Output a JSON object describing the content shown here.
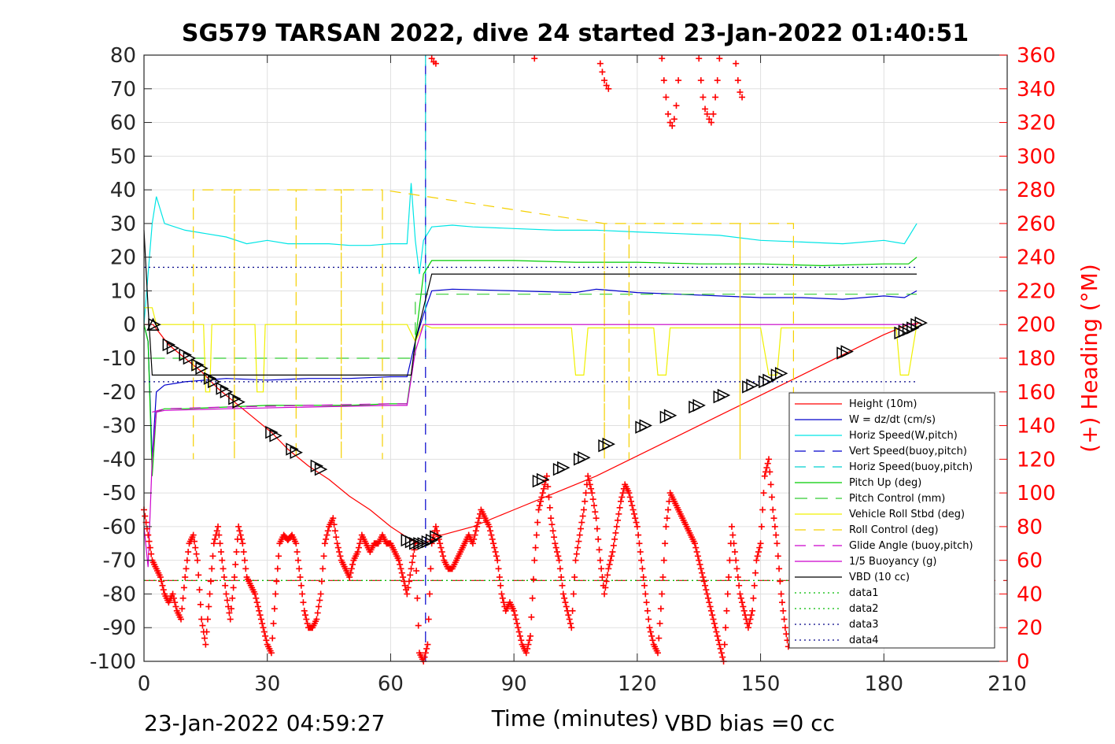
{
  "chart_data": {
    "type": "line",
    "title": "SG579 TARSAN 2022, dive 24 started 23-Jan-2022 01:40:51",
    "xlabel": "Time (minutes)",
    "ylabel_right": "(+) Heading (°M)",
    "footer_left": "23-Jan-2022 04:59:27",
    "footer_right": "VBD bias =0 cc",
    "xlim": [
      0,
      210
    ],
    "ylim": [
      -100,
      80
    ],
    "ylim_right": [
      0,
      360
    ],
    "x_ticks": [
      "0",
      "30",
      "60",
      "90",
      "120",
      "150",
      "180",
      "210"
    ],
    "y_ticks": [
      "80",
      "70",
      "60",
      "50",
      "40",
      "30",
      "20",
      "10",
      "0",
      "-10",
      "-20",
      "-30",
      "-40",
      "-50",
      "-60",
      "-70",
      "-80",
      "-90",
      "-100"
    ],
    "y_ticks_right": [
      "360",
      "340",
      "320",
      "300",
      "280",
      "260",
      "240",
      "220",
      "200",
      "180",
      "160",
      "140",
      "120",
      "100",
      "80",
      "60",
      "40",
      "20",
      "0"
    ],
    "grid": true,
    "legend_position": "lower-right",
    "colors": {
      "axis": "#262626",
      "heading": "#ff0000",
      "grid": "#e0e0e0"
    },
    "series": [
      {
        "name": "Height (10m)",
        "color": "#ff0000",
        "dash": "",
        "x": [
          0,
          2.2,
          6,
          10,
          14,
          18,
          22,
          26,
          31,
          35,
          40,
          45,
          50,
          55,
          60,
          65,
          66,
          67,
          68,
          69,
          70,
          71,
          80,
          90,
          100,
          110,
          120,
          130,
          140,
          150,
          160,
          170,
          180,
          186,
          189
        ],
        "y": [
          0,
          0,
          -6,
          -10,
          -14,
          -19,
          -23,
          -27,
          -32,
          -37,
          -42,
          -46,
          -51,
          -55,
          -60,
          -64,
          -64.5,
          -65,
          -65,
          -64.5,
          -64,
          -63,
          -60,
          -55,
          -50,
          -45,
          -39,
          -33,
          -27,
          -21,
          -15,
          -9,
          -3,
          0,
          0.5
        ]
      },
      {
        "name": "W = dz/dt (cm/s)",
        "color": "#0000cc",
        "dash": "",
        "x": [
          0,
          1,
          2,
          3,
          5,
          10,
          20,
          30,
          40,
          50,
          60,
          64,
          66,
          68,
          70,
          75,
          90,
          105,
          110,
          120,
          130,
          140,
          150,
          160,
          170,
          180,
          185,
          188
        ],
        "y": [
          0,
          -5,
          -40,
          -20,
          -18,
          -17,
          -16,
          -16.5,
          -16,
          -16,
          -15.5,
          -15.5,
          -5,
          3,
          10,
          10.5,
          10,
          9.5,
          10.5,
          9.5,
          9,
          8.5,
          8,
          8,
          7.5,
          8.5,
          8,
          10
        ]
      },
      {
        "name": "Horiz Speed(W,pitch)",
        "color": "#00e5e5",
        "dash": "",
        "x": [
          0,
          2,
          3,
          5,
          10,
          15,
          20,
          25,
          30,
          35,
          40,
          45,
          50,
          55,
          60,
          64,
          65,
          66,
          67,
          68,
          70,
          75,
          80,
          90,
          100,
          110,
          120,
          130,
          140,
          150,
          160,
          170,
          180,
          185,
          188
        ],
        "y": [
          0,
          30,
          38,
          30,
          28,
          27,
          26,
          24,
          25,
          24,
          24,
          24,
          23.5,
          23.5,
          24,
          24,
          42,
          25,
          15,
          25,
          29,
          29.5,
          29,
          28.5,
          28,
          28,
          27.5,
          27,
          26.5,
          25,
          24.5,
          24,
          25,
          24,
          30
        ]
      },
      {
        "name": "Vert Speed(buoy,pitch)",
        "color": "#0000cc",
        "dash": "14,10",
        "x": [
          68.5,
          68.5
        ],
        "y": [
          -100,
          80
        ]
      },
      {
        "name": "Horiz Speed(buoy,pitch)",
        "color": "#00d0d0",
        "dash": "14,10",
        "x": [
          68.5,
          68.5
        ],
        "y": [
          80,
          -10
        ]
      },
      {
        "name": "Pitch Up (deg)",
        "color": "#00cc00",
        "dash": "",
        "x": [
          0,
          1,
          2,
          3,
          5,
          10,
          20,
          30,
          40,
          50,
          60,
          64,
          65,
          66,
          68,
          70,
          75,
          90,
          105,
          120,
          135,
          150,
          165,
          180,
          186,
          188
        ],
        "y": [
          0,
          -5,
          -45,
          -26,
          -25,
          -25,
          -24.5,
          -24,
          -24,
          -24,
          -23.5,
          -23.5,
          -15,
          -5,
          15,
          19,
          19,
          19,
          18.5,
          18.5,
          18,
          18,
          17.5,
          18,
          18,
          20
        ]
      },
      {
        "name": "Pitch Control (mm)",
        "color": "#33cc33",
        "dash": "16,10",
        "x": [
          2,
          66,
          66,
          188
        ],
        "y": [
          -10,
          -10,
          9,
          9
        ]
      },
      {
        "name": "Vehicle Roll Stbd (deg)",
        "color": "#f0f000",
        "dash": "",
        "x": [
          0,
          2,
          3,
          14.5,
          15,
          16,
          16.5,
          27,
          27.5,
          29,
          29.5,
          45,
          50,
          60,
          64,
          66,
          68,
          70,
          80,
          90,
          100,
          104,
          105,
          107,
          108,
          124,
          125,
          127,
          128,
          150,
          152,
          154,
          155,
          170,
          180,
          183,
          184,
          186,
          188
        ],
        "y": [
          5,
          5,
          0,
          0,
          -20,
          -20,
          0,
          0,
          -20,
          -20,
          0,
          0,
          0,
          0,
          0,
          -5,
          0,
          -1,
          -1,
          -1,
          -1,
          -1,
          -15,
          -15,
          -1,
          -1,
          -15,
          -15,
          -1,
          -1,
          -15,
          -15,
          -1,
          -1,
          -1,
          -1,
          -15,
          -15,
          0
        ]
      },
      {
        "name": "Roll Control (deg)",
        "color": "#f5d000",
        "dash": "14,10",
        "x": [
          12,
          12,
          12,
          22,
          22,
          22,
          37,
          37,
          37,
          48,
          48,
          48,
          58,
          58,
          58,
          112,
          112,
          112,
          118,
          118,
          118,
          145,
          145,
          145,
          158,
          158,
          158
        ],
        "y": [
          40,
          -40,
          40,
          40,
          -40,
          40,
          40,
          -40,
          40,
          40,
          -40,
          40,
          40,
          -40,
          40,
          30,
          -40,
          30,
          30,
          -40,
          30,
          30,
          -40,
          30,
          30,
          -40,
          30
        ]
      },
      {
        "name": "Glide Angle (buoy,pitch)",
        "color": "#cc00cc",
        "dash": "14,10",
        "x": [
          2,
          5,
          20,
          40,
          60,
          64
        ],
        "y": [
          -26,
          -25,
          -24.5,
          -24,
          -23.5,
          -23.5
        ]
      },
      {
        "name": "1/5 Buoyancy (g)",
        "color": "#cc00cc",
        "dash": "",
        "x": [
          0,
          1,
          2,
          3,
          5,
          20,
          40,
          60,
          64,
          66,
          68,
          188
        ],
        "y": [
          -60,
          -72,
          -40,
          -26,
          -25.5,
          -25,
          -24.5,
          -24,
          -24,
          -8,
          0,
          0
        ]
      },
      {
        "name": "VBD (10 cc)",
        "color": "#000000",
        "dash": "",
        "x": [
          0,
          1,
          2,
          3,
          65,
          66,
          70,
          71,
          188
        ],
        "y": [
          28,
          5,
          -15,
          -15,
          -15,
          -5,
          15,
          15,
          15
        ]
      },
      {
        "name": "data1",
        "color": "#00bb00",
        "dash": "2,4",
        "x": [
          0,
          188
        ],
        "y": [
          -76,
          -76
        ]
      },
      {
        "name": "data2",
        "color": "#00bb00",
        "dash": "2,4",
        "x": [
          0,
          188
        ],
        "y": [
          -76,
          -76
        ]
      },
      {
        "name": "data3",
        "color": "#000088",
        "dash": "2,4",
        "x": [
          0,
          188
        ],
        "y": [
          17,
          17
        ]
      },
      {
        "name": "data4",
        "color": "#000088",
        "dash": "2,4",
        "x": [
          0,
          188
        ],
        "y": [
          -17,
          -17
        ]
      }
    ],
    "heading_reference": {
      "value": 48,
      "color": "#cc0000",
      "dash": "16,10"
    },
    "heading_samples": {
      "color": "#ff0000",
      "x": [
        0,
        1,
        2,
        3,
        4,
        5,
        6,
        7,
        8,
        9,
        10,
        11,
        12,
        13,
        14,
        15,
        16,
        17,
        18,
        19,
        20,
        21,
        22,
        23,
        24,
        25,
        26,
        27,
        28,
        29,
        30,
        31,
        32,
        33,
        34,
        35,
        36,
        37,
        38,
        39,
        40,
        41,
        42,
        43,
        44,
        45,
        46,
        47,
        48,
        49,
        50,
        51,
        52,
        53,
        54,
        55,
        56,
        57,
        58,
        59,
        60,
        61,
        62,
        63,
        64,
        65,
        66,
        67,
        68,
        69,
        70,
        71,
        72,
        73,
        74,
        75,
        76,
        77,
        78,
        79,
        80,
        81,
        82,
        83,
        84,
        85,
        86,
        87,
        88,
        89,
        90,
        91,
        92,
        93,
        94,
        95,
        96,
        97,
        98,
        99,
        100,
        101,
        102,
        103,
        104,
        105,
        106,
        107,
        108,
        109,
        110,
        111,
        112,
        113,
        114,
        115,
        116,
        117,
        118,
        119,
        120,
        121,
        122,
        123,
        124,
        125,
        126,
        127,
        128,
        129,
        130,
        131,
        132,
        133,
        134,
        135,
        136,
        137,
        138,
        139,
        140,
        141,
        142,
        143,
        144,
        145,
        146,
        147,
        148,
        149,
        150,
        151,
        152,
        153,
        154,
        155,
        156,
        157
      ],
      "y": [
        90,
        75,
        60,
        55,
        50,
        40,
        35,
        40,
        30,
        25,
        50,
        70,
        75,
        60,
        25,
        10,
        40,
        70,
        80,
        60,
        40,
        25,
        50,
        80,
        70,
        50,
        45,
        40,
        30,
        20,
        10,
        5,
        40,
        70,
        75,
        72,
        75,
        70,
        50,
        30,
        20,
        20,
        25,
        40,
        70,
        80,
        85,
        70,
        60,
        55,
        50,
        60,
        65,
        75,
        70,
        65,
        70,
        70,
        75,
        70,
        70,
        65,
        60,
        50,
        40,
        55,
        70,
        5,
        0,
        10,
        70,
        80,
        70,
        60,
        55,
        55,
        60,
        65,
        70,
        75,
        70,
        80,
        90,
        85,
        80,
        70,
        60,
        40,
        30,
        35,
        30,
        20,
        10,
        5,
        15,
        60,
        90,
        100,
        110,
        85,
        70,
        60,
        40,
        30,
        20,
        60,
        75,
        90,
        110,
        100,
        85,
        60,
        40,
        55,
        65,
        80,
        95,
        105,
        100,
        90,
        80,
        60,
        40,
        20,
        10,
        5,
        40,
        80,
        100,
        95,
        90,
        85,
        80,
        75,
        70,
        60,
        50,
        40,
        30,
        20,
        10,
        0,
        40,
        80,
        60,
        40,
        30,
        20,
        30,
        60,
        70,
        110,
        120,
        90,
        70,
        40,
        20,
        5
      ]
    },
    "heading_samples_top": {
      "x": [
        70,
        70.5,
        71,
        95,
        111,
        111.5,
        112,
        112.5,
        113,
        126,
        126.5,
        127,
        127.5,
        128,
        128.5,
        129,
        129.5,
        130,
        135,
        135.5,
        136,
        136.5,
        137,
        137.5,
        138,
        138.5,
        139,
        139.5,
        140,
        144,
        144.5,
        145,
        145.5
      ],
      "y": [
        358,
        356,
        355,
        358,
        355,
        350,
        345,
        342,
        340,
        358,
        345,
        335,
        325,
        320,
        318,
        322,
        330,
        345,
        358,
        345,
        335,
        328,
        325,
        322,
        320,
        325,
        335,
        345,
        358,
        355,
        345,
        338,
        335
      ]
    },
    "markers": {
      "x": [
        2.5,
        6,
        7,
        10,
        11,
        13,
        14,
        16,
        17,
        19,
        20,
        22,
        23,
        31,
        32,
        36,
        37,
        42,
        43,
        64,
        65,
        66,
        67,
        68,
        69,
        70,
        71,
        96,
        97,
        101,
        102,
        106,
        107,
        112,
        113,
        121,
        122,
        127,
        128,
        134,
        135,
        140,
        141,
        147,
        148,
        151,
        152,
        154,
        155,
        170,
        171,
        184,
        185,
        186,
        187,
        188,
        189
      ],
      "y": [
        0,
        -6,
        -7,
        -9,
        -10,
        -12,
        -13,
        -16,
        -17,
        -19,
        -20,
        -22,
        -23,
        -32,
        -33,
        -37,
        -38,
        -42,
        -43,
        -64,
        -64.5,
        -65,
        -65,
        -65,
        -64.5,
        -64,
        -63,
        -46.5,
        -46,
        -43,
        -42.5,
        -40,
        -39.5,
        -36,
        -35.5,
        -30.5,
        -30,
        -27.5,
        -27,
        -24.5,
        -24,
        -21.5,
        -21,
        -18.5,
        -18,
        -17,
        -16.5,
        -15,
        -14.5,
        -8.5,
        -8,
        -2.5,
        -2,
        -1.5,
        -1,
        0,
        0.5
      ]
    }
  }
}
